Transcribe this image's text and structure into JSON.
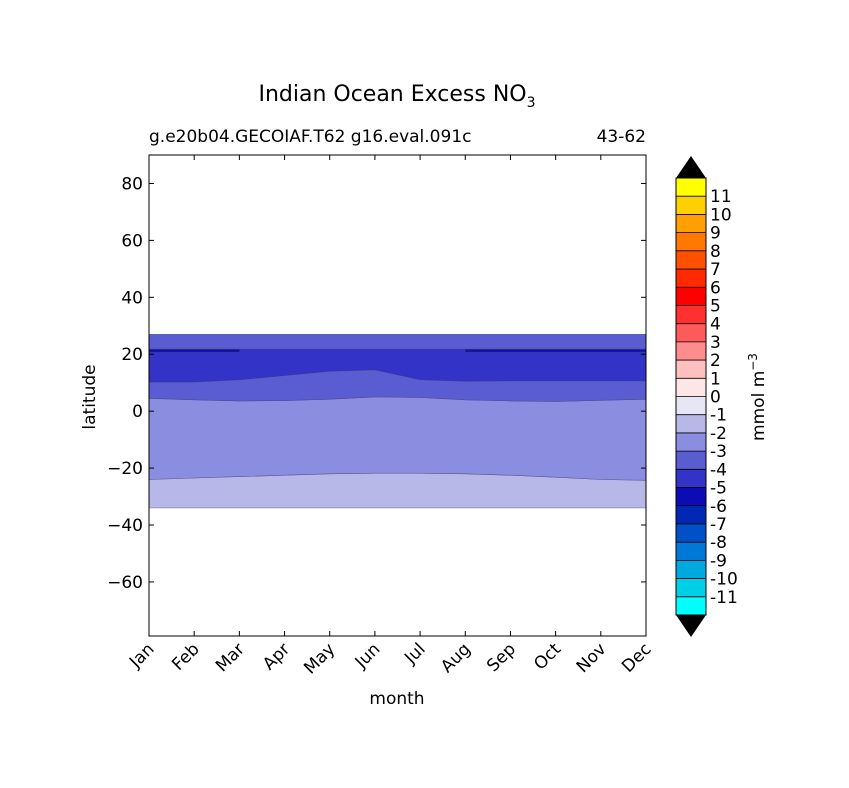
{
  "chart_data": {
    "type": "contourf",
    "title": "Indian Ocean Excess NO",
    "title_subscript": "3",
    "subtitle_left": "g.e20b04.GECOIAF.T62 g16.eval.091c",
    "subtitle_right": "43-62",
    "xlabel": "month",
    "ylabel": "latitude",
    "months": [
      "Jan",
      "Feb",
      "Mar",
      "Apr",
      "May",
      "Jun",
      "Jul",
      "Aug",
      "Sep",
      "Oct",
      "Nov",
      "Dec"
    ],
    "ylim": [
      -79,
      90
    ],
    "yticks": [
      80,
      60,
      40,
      20,
      0,
      -20,
      -40,
      -60
    ],
    "ytick_labels": [
      "80",
      "60",
      "40",
      "20",
      "0",
      "−20",
      "−40",
      "−60"
    ],
    "data_extent_lat": [
      -34,
      27
    ],
    "bands": [
      {
        "level": "-2 to -1",
        "color": "#b8b8e8",
        "lower": [
          -34,
          -34,
          -34,
          -34,
          -34,
          -34,
          -34,
          -34,
          -34,
          -34,
          -34,
          -34
        ],
        "upper": [
          -24,
          -23.5,
          -23,
          -22.5,
          -22,
          -21.8,
          -21.8,
          -22,
          -22.5,
          -23.2,
          -24,
          -24.3
        ]
      },
      {
        "level": "-3 to -2",
        "color": "#8b8de0",
        "lower": [
          -24,
          -23.5,
          -23,
          -22.5,
          -22,
          -21.8,
          -21.8,
          -22,
          -22.5,
          -23.2,
          -24,
          -24.3
        ],
        "upper": [
          4.5,
          4,
          3.6,
          3.7,
          4.2,
          5,
          4.8,
          4,
          3.6,
          3.4,
          3.8,
          4.2
        ]
      },
      {
        "level": "-4 to -3",
        "color": "#5a5dd2",
        "lower": [
          4.5,
          4,
          3.6,
          3.7,
          4.2,
          5,
          4.8,
          4,
          3.6,
          3.4,
          3.8,
          4.2
        ],
        "upper": [
          27,
          27,
          27,
          27,
          27,
          27,
          27,
          27,
          27,
          27,
          27,
          27
        ]
      },
      {
        "level": "-5 to -4",
        "color": "#3333c7",
        "lower": [
          10.2,
          10.2,
          11,
          12.5,
          14,
          14.5,
          11,
          10.5,
          10.6,
          10.6,
          10.6,
          10.6
        ],
        "upper": [
          21.8,
          21.8,
          21.8,
          21.8,
          21.8,
          21.8,
          21.8,
          21.8,
          21.8,
          21.8,
          21.8,
          21.8
        ]
      },
      {
        "level": "-6 to -5",
        "color": "#1010a8",
        "lower": [
          20.8,
          20.8,
          20.8,
          null,
          null,
          null,
          null,
          20.8,
          20.8,
          20.8,
          20.8,
          20.8
        ],
        "upper": [
          21.7,
          21.7,
          21.7,
          null,
          null,
          null,
          null,
          21.7,
          21.7,
          21.7,
          21.7,
          21.7
        ]
      }
    ],
    "colorbar": {
      "label": "mmol m",
      "label_exponent": "−3",
      "tick_labels": [
        "11",
        "10",
        "9",
        "8",
        "7",
        "6",
        "5",
        "4",
        "3",
        "2",
        "1",
        "0",
        "-1",
        "-2",
        "-3",
        "-4",
        "-5",
        "-6",
        "-7",
        "-8",
        "-9",
        "-10",
        "-11"
      ],
      "colors": [
        "#ffff00",
        "#ffd000",
        "#ffa000",
        "#ff7800",
        "#ff5000",
        "#ff2a00",
        "#ff0000",
        "#ff3030",
        "#ff5a5a",
        "#ff8c8c",
        "#ffc0c0",
        "#ffe6e6",
        "#e6e6f5",
        "#b8b8e8",
        "#8b8de0",
        "#5a5dd2",
        "#3333c7",
        "#0c0cb4",
        "#0028b4",
        "#0050c8",
        "#0078d8",
        "#00a8e0",
        "#00d0e6",
        "#00ffff"
      ],
      "under_color": "#000000",
      "over_color": "#000000"
    }
  }
}
